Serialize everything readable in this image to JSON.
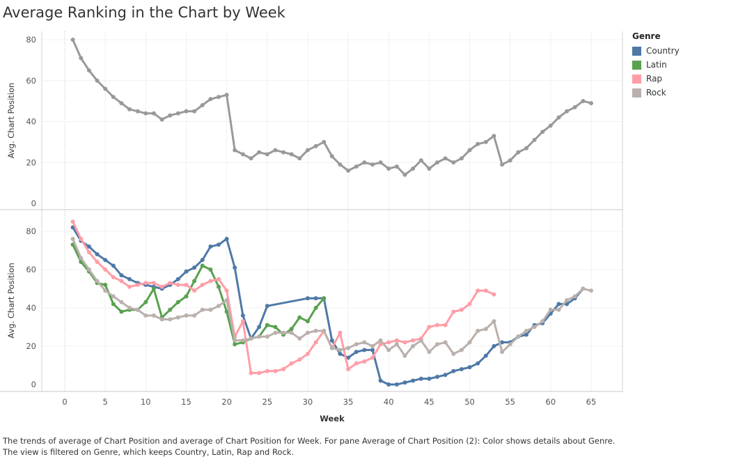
{
  "chart_data": {
    "type": "line",
    "title": "Average Ranking in the Chart by Week",
    "xlabel": "Week",
    "xlim": [
      0,
      65
    ],
    "xticks": [
      0,
      5,
      10,
      15,
      20,
      25,
      30,
      35,
      40,
      45,
      50,
      55,
      60,
      65
    ],
    "legend": {
      "title": "Genre",
      "position": "top-right"
    },
    "grid": true,
    "panes": [
      {
        "ylabel": "Avg. Chart Position",
        "ylim": [
          0,
          85
        ],
        "yticks": [
          0,
          20,
          40,
          60,
          80
        ],
        "series": [
          {
            "color": "#999999",
            "x": [
              1,
              2,
              3,
              4,
              5,
              6,
              7,
              8,
              9,
              10,
              11,
              12,
              13,
              14,
              15,
              16,
              17,
              18,
              19,
              20,
              21,
              22,
              23,
              24,
              25,
              26,
              27,
              28,
              29,
              30,
              31,
              32,
              33,
              34,
              35,
              36,
              37,
              38,
              39,
              40,
              41,
              42,
              43,
              44,
              45,
              46,
              47,
              48,
              49,
              50,
              51,
              52,
              53,
              54,
              55,
              56,
              57,
              58,
              59,
              60,
              61,
              62,
              63,
              64,
              65
            ],
            "y": [
              80,
              71,
              65,
              60,
              56,
              52,
              49,
              46,
              45,
              44,
              44,
              41,
              43,
              44,
              45,
              45,
              48,
              51,
              52,
              53,
              26,
              24,
              22,
              25,
              24,
              26,
              25,
              24,
              22,
              26,
              28,
              30,
              23,
              19,
              16,
              18,
              20,
              19,
              20,
              17,
              18,
              14,
              17,
              21,
              17,
              20,
              22,
              20,
              22,
              26,
              29,
              30,
              33,
              19,
              21,
              25,
              27,
              31,
              35,
              38,
              42,
              45,
              47,
              50,
              49
            ]
          }
        ]
      },
      {
        "ylabel": "Avg. Chart Position",
        "ylim": [
          0,
          85
        ],
        "yticks": [
          0,
          20,
          40,
          60,
          80
        ],
        "series": [
          {
            "name": "Country",
            "color": "#4e79a7",
            "x": [
              1,
              2,
              3,
              4,
              5,
              6,
              7,
              8,
              9,
              10,
              11,
              12,
              13,
              14,
              15,
              16,
              17,
              18,
              19,
              20,
              21,
              22,
              23,
              24,
              25,
              30,
              31,
              32,
              33,
              34,
              35,
              36,
              37,
              38,
              39,
              40,
              41,
              42,
              43,
              44,
              45,
              46,
              47,
              48,
              49,
              50,
              51,
              52,
              53,
              54,
              55,
              56,
              57,
              58,
              59,
              60,
              61,
              62,
              63,
              64
            ],
            "y": [
              82,
              75,
              72,
              68,
              65,
              62,
              57,
              55,
              53,
              52,
              51,
              50,
              52,
              55,
              59,
              61,
              65,
              72,
              73,
              76,
              61,
              36,
              24,
              30,
              41,
              45,
              45,
              45,
              23,
              16,
              14,
              17,
              18,
              18,
              2,
              0,
              0,
              1,
              2,
              3,
              3,
              4,
              5,
              7,
              8,
              9,
              11,
              15,
              20,
              22,
              22,
              25,
              26,
              31,
              32,
              37,
              42,
              42,
              45,
              50
            ]
          },
          {
            "name": "Latin",
            "color": "#59a14f",
            "x": [
              1,
              2,
              3,
              4,
              5,
              6,
              7,
              8,
              9,
              10,
              11,
              12,
              13,
              14,
              15,
              16,
              17,
              18,
              19,
              20,
              21,
              22,
              23,
              24,
              25,
              26,
              27,
              28,
              29,
              30,
              31,
              32
            ],
            "y": [
              73,
              64,
              59,
              53,
              52,
              42,
              38,
              39,
              39,
              43,
              50,
              35,
              39,
              43,
              46,
              54,
              62,
              60,
              51,
              38,
              21,
              22,
              24,
              25,
              31,
              30,
              26,
              29,
              35,
              33,
              40,
              45
            ]
          },
          {
            "name": "Rap",
            "color": "#ff9da7",
            "x": [
              1,
              2,
              3,
              4,
              5,
              6,
              7,
              8,
              9,
              10,
              11,
              12,
              13,
              14,
              15,
              16,
              17,
              18,
              19,
              20,
              21,
              22,
              23,
              24,
              25,
              26,
              27,
              28,
              29,
              30,
              31,
              32,
              33,
              34,
              35,
              36,
              37,
              38,
              39,
              40,
              41,
              42,
              43,
              44,
              45,
              46,
              47,
              48,
              49,
              50,
              51,
              52,
              53
            ],
            "y": [
              85,
              76,
              69,
              64,
              60,
              56,
              54,
              51,
              52,
              53,
              53,
              51,
              53,
              52,
              52,
              49,
              52,
              54,
              55,
              49,
              25,
              33,
              6,
              6,
              7,
              7,
              8,
              11,
              13,
              16,
              22,
              28,
              19,
              27,
              8,
              11,
              12,
              14,
              21,
              22,
              23,
              22,
              23,
              24,
              30,
              31,
              31,
              38,
              39,
              42,
              49,
              49,
              47
            ]
          },
          {
            "name": "Rock",
            "color": "#bab0ac",
            "x": [
              1,
              2,
              3,
              4,
              5,
              6,
              7,
              8,
              9,
              10,
              11,
              12,
              13,
              14,
              15,
              16,
              17,
              18,
              19,
              20,
              21,
              22,
              23,
              24,
              25,
              26,
              27,
              28,
              29,
              30,
              31,
              32,
              33,
              34,
              35,
              36,
              37,
              38,
              39,
              40,
              41,
              42,
              43,
              44,
              45,
              46,
              47,
              48,
              49,
              50,
              51,
              52,
              53,
              54,
              55,
              56,
              57,
              58,
              59,
              60,
              61,
              62,
              63,
              64,
              65
            ],
            "y": [
              76,
              66,
              60,
              54,
              49,
              46,
              43,
              40,
              39,
              36,
              36,
              34,
              34,
              35,
              36,
              36,
              39,
              39,
              41,
              44,
              23,
              23,
              24,
              25,
              25,
              27,
              27,
              27,
              24,
              27,
              28,
              28,
              19,
              18,
              19,
              21,
              22,
              20,
              23,
              18,
              21,
              15,
              20,
              23,
              17,
              21,
              22,
              16,
              18,
              22,
              28,
              29,
              33,
              17,
              21,
              25,
              28,
              30,
              33,
              39,
              39,
              44,
              46,
              50,
              49
            ]
          }
        ]
      }
    ]
  },
  "legend_items": [
    {
      "name": "Country",
      "color": "#4e79a7"
    },
    {
      "name": "Latin",
      "color": "#59a14f"
    },
    {
      "name": "Rap",
      "color": "#ff9da7"
    },
    {
      "name": "Rock",
      "color": "#bab0ac"
    }
  ],
  "caption": "The trends of average of Chart Position and average of Chart Position for Week.  For pane Average of Chart Position (2):  Color shows details about Genre. The view is filtered on Genre, which keeps Country, Latin, Rap and Rock."
}
